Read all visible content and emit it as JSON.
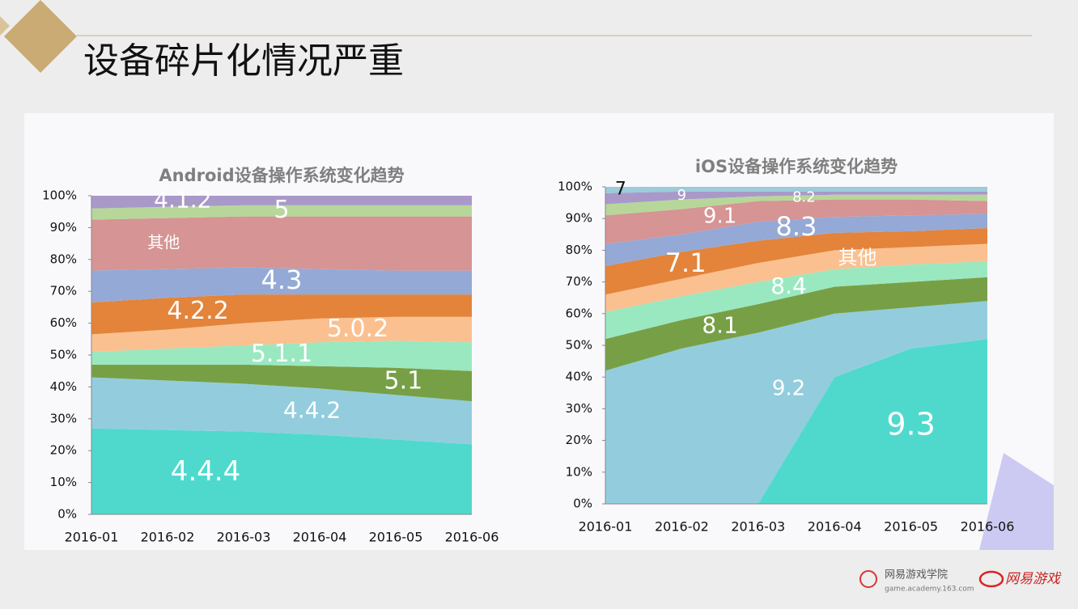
{
  "title": "设备碎片化情况严重",
  "chart_data": [
    {
      "type": "area",
      "stacked": true,
      "title": "Android设备操作系统变化趋势",
      "categories": [
        "2016-01",
        "2016-02",
        "2016-03",
        "2016-04",
        "2016-05",
        "2016-06"
      ],
      "ylim": [
        0,
        100
      ],
      "yticks": [
        {
          "value": 0,
          "label": "0%"
        },
        {
          "value": 10,
          "label": "10%"
        },
        {
          "value": 20,
          "label": "20%"
        },
        {
          "value": 30,
          "label": "30%"
        },
        {
          "value": 40,
          "label": "40%"
        },
        {
          "value": 50,
          "label": "50%"
        },
        {
          "value": 60,
          "label": "60%"
        },
        {
          "value": 70,
          "label": "70%"
        },
        {
          "value": 80,
          "label": "80%"
        },
        {
          "value": 90,
          "label": "90%"
        },
        {
          "value": 100,
          "label": "100%"
        }
      ],
      "series": [
        {
          "name": "4.4.4",
          "color": "#4fd9cd",
          "values": [
            27,
            26.5,
            26,
            25,
            23.5,
            22
          ]
        },
        {
          "name": "4.4.2",
          "color": "#93cddd",
          "values": [
            16,
            15.5,
            15,
            14.5,
            14,
            13.5
          ]
        },
        {
          "name": "5.1",
          "color": "#77a046",
          "values": [
            4,
            5,
            6,
            7,
            8.5,
            9.5
          ]
        },
        {
          "name": "5.1.1",
          "color": "#9ae8c0",
          "values": [
            4,
            5,
            6,
            7.5,
            8.5,
            9
          ]
        },
        {
          "name": "5.0.2",
          "color": "#fac090",
          "values": [
            5.5,
            6,
            7,
            7.5,
            7.5,
            8
          ]
        },
        {
          "name": "4.2.2",
          "color": "#e3843a",
          "values": [
            10,
            10,
            9,
            7.5,
            7,
            7
          ]
        },
        {
          "name": "4.3",
          "color": "#95a9d6",
          "values": [
            10,
            9,
            8.5,
            8,
            7.5,
            7.5
          ]
        },
        {
          "name": "其他",
          "color": "#d69494",
          "values": [
            16,
            16,
            16,
            16.5,
            17,
            17
          ]
        },
        {
          "name": "5",
          "color": "#b7d79a",
          "values": [
            3.5,
            3.5,
            3.5,
            3.5,
            3.5,
            3.5
          ]
        },
        {
          "name": "4.1.2",
          "color": "#a999c8",
          "values": [
            4,
            3.5,
            3,
            3,
            3,
            3
          ]
        }
      ]
    },
    {
      "type": "area",
      "stacked": true,
      "title": "iOS设备操作系统变化趋势",
      "categories": [
        "2016-01",
        "2016-02",
        "2016-03",
        "2016-04",
        "2016-05",
        "2016-06"
      ],
      "ylim": [
        0,
        100
      ],
      "yticks": [
        {
          "value": 0,
          "label": "0%"
        },
        {
          "value": 10,
          "label": "10%"
        },
        {
          "value": 20,
          "label": "20%"
        },
        {
          "value": 30,
          "label": "30%"
        },
        {
          "value": 40,
          "label": "40%"
        },
        {
          "value": 50,
          "label": "50%"
        },
        {
          "value": 60,
          "label": "60%"
        },
        {
          "value": 70,
          "label": "70%"
        },
        {
          "value": 80,
          "label": "80%"
        },
        {
          "value": 90,
          "label": "90%"
        },
        {
          "value": 100,
          "label": "100%"
        }
      ],
      "series": [
        {
          "name": "9.3",
          "color": "#4fd9cd",
          "values": [
            0,
            0,
            0,
            40,
            49,
            52
          ]
        },
        {
          "name": "9.2",
          "color": "#93cddd",
          "values": [
            42,
            49,
            54,
            20,
            13,
            12
          ]
        },
        {
          "name": "8.1",
          "color": "#77a046",
          "values": [
            10,
            9,
            9,
            8.5,
            8,
            7.5
          ]
        },
        {
          "name": "8.4",
          "color": "#9ae8c0",
          "values": [
            8.5,
            7.5,
            7,
            5.5,
            5.5,
            5
          ]
        },
        {
          "name": "其他",
          "color": "#fac090",
          "values": [
            5.5,
            5.5,
            6,
            6,
            5.5,
            5.5
          ]
        },
        {
          "name": "7.1",
          "color": "#e3843a",
          "values": [
            9,
            8.5,
            7,
            5.5,
            5,
            5
          ]
        },
        {
          "name": "8.3",
          "color": "#95a9d6",
          "values": [
            7,
            5.5,
            6,
            5,
            5,
            4.5
          ]
        },
        {
          "name": "9.1",
          "color": "#d69494",
          "values": [
            9,
            8,
            6.5,
            5.5,
            5,
            4
          ]
        },
        {
          "name": "8.2",
          "color": "#b7d79a",
          "values": [
            3.5,
            3,
            1.5,
            1.5,
            1.5,
            2
          ]
        },
        {
          "name": "9",
          "color": "#a999c8",
          "values": [
            3.5,
            2.5,
            1.5,
            1,
            1,
            1
          ]
        },
        {
          "name": "7",
          "color": "#9ccbd9",
          "values": [
            2,
            1.5,
            1.5,
            1.5,
            1.5,
            1.5
          ]
        }
      ]
    }
  ],
  "footer": {
    "academy": "网易游戏学院",
    "url": "game.academy.163.com",
    "brand": "网易游戏"
  }
}
